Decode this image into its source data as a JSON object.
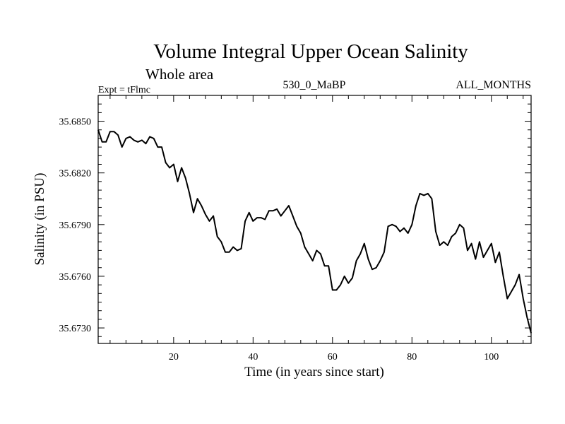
{
  "chart_data": {
    "type": "line",
    "title": "Volume Integral Upper Ocean Salinity",
    "subtitle": "Whole area",
    "left_label": "Expt = tFlmc",
    "center_label": "530_0_MaBP",
    "right_label": "ALL_MONTHS",
    "xlabel": "Time (in years since start)",
    "ylabel": "Salinity (in PSU)",
    "xlim": [
      1,
      110
    ],
    "ylim": [
      35.6721,
      35.6865
    ],
    "x_ticks": [
      20,
      40,
      60,
      80,
      100
    ],
    "x_tick_labels": [
      "20",
      "40",
      "60",
      "80",
      "100"
    ],
    "y_ticks": [
      35.673,
      35.676,
      35.679,
      35.682,
      35.685
    ],
    "y_tick_labels": [
      "35.6730",
      "35.6760",
      "35.6790",
      "35.6820",
      "35.6850"
    ],
    "grid": false,
    "series": [
      {
        "name": "salinity",
        "color": "#000000",
        "x": [
          1,
          2,
          3,
          4,
          5,
          6,
          7,
          8,
          9,
          10,
          11,
          12,
          13,
          14,
          15,
          16,
          17,
          18,
          19,
          20,
          21,
          22,
          23,
          24,
          25,
          26,
          27,
          28,
          29,
          30,
          31,
          32,
          33,
          34,
          35,
          36,
          37,
          38,
          39,
          40,
          41,
          42,
          43,
          44,
          45,
          46,
          47,
          48,
          49,
          50,
          51,
          52,
          53,
          54,
          55,
          56,
          57,
          58,
          59,
          60,
          61,
          62,
          63,
          64,
          65,
          66,
          67,
          68,
          69,
          70,
          71,
          72,
          73,
          74,
          75,
          76,
          77,
          78,
          79,
          80,
          81,
          82,
          83,
          84,
          85,
          86,
          87,
          88,
          89,
          90,
          91,
          92,
          93,
          94,
          95,
          96,
          97,
          98,
          99,
          100,
          101,
          102,
          103,
          104,
          105,
          106,
          107,
          108,
          109,
          110
        ],
        "values": [
          35.6845,
          35.6838,
          35.6838,
          35.6844,
          35.6844,
          35.6842,
          35.6835,
          35.684,
          35.6841,
          35.6839,
          35.6838,
          35.6839,
          35.6837,
          35.6841,
          35.684,
          35.6835,
          35.6835,
          35.6826,
          35.6823,
          35.6825,
          35.6815,
          35.6823,
          35.6817,
          35.6808,
          35.6797,
          35.6805,
          35.6801,
          35.6796,
          35.6792,
          35.6795,
          35.6783,
          35.678,
          35.6774,
          35.6774,
          35.6777,
          35.6775,
          35.6776,
          35.6792,
          35.6797,
          35.6792,
          35.6794,
          35.6794,
          35.6793,
          35.6798,
          35.6798,
          35.6799,
          35.6795,
          35.6798,
          35.6801,
          35.6795,
          35.6789,
          35.6785,
          35.6777,
          35.6773,
          35.6769,
          35.6775,
          35.6773,
          35.6766,
          35.6766,
          35.6752,
          35.6752,
          35.6755,
          35.676,
          35.6756,
          35.6759,
          35.6769,
          35.6773,
          35.6779,
          35.677,
          35.6764,
          35.6765,
          35.6769,
          35.6774,
          35.6789,
          35.679,
          35.6789,
          35.6786,
          35.6788,
          35.6785,
          35.679,
          35.6801,
          35.6808,
          35.6807,
          35.6808,
          35.6805,
          35.6786,
          35.6778,
          35.678,
          35.6778,
          35.6783,
          35.6785,
          35.679,
          35.6788,
          35.6775,
          35.6779,
          35.677,
          35.678,
          35.6771,
          35.6775,
          35.6779,
          35.6768,
          35.6774,
          35.676,
          35.6747,
          35.6751,
          35.6755,
          35.6761,
          35.6747,
          35.6736,
          35.6727
        ]
      }
    ]
  }
}
